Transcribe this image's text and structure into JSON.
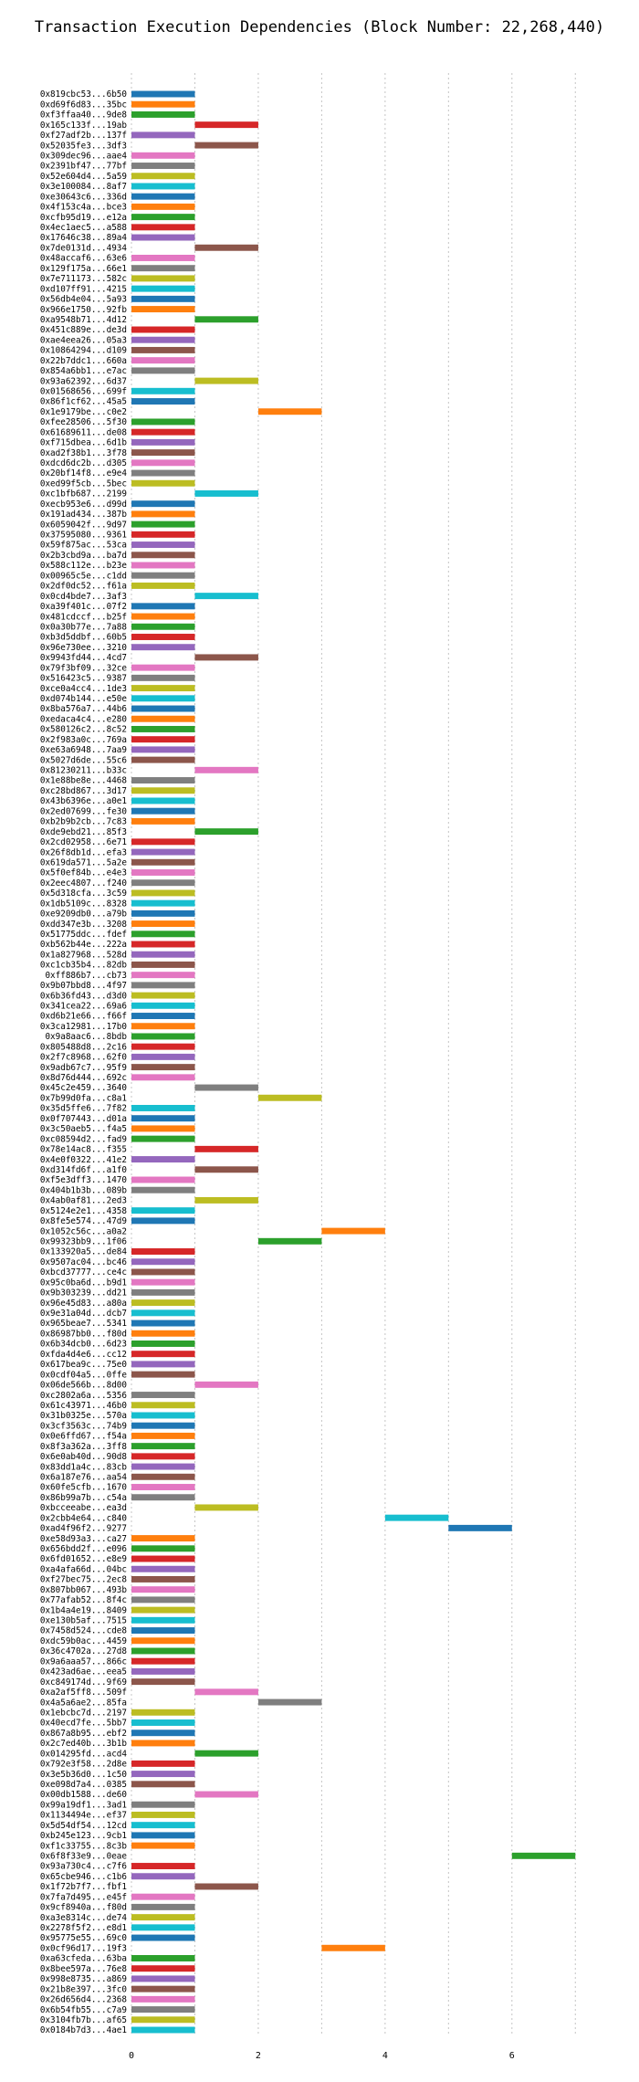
{
  "chart_data": {
    "type": "gantt",
    "title": "Transaction Execution Dependencies (Block Number: 22,268,440)",
    "xlabel": "",
    "ylabel": "",
    "xlim": [
      0,
      7.5
    ],
    "xticks": [
      0,
      2,
      4,
      6
    ],
    "grid": "vertical dotted",
    "legend": "none",
    "palette": [
      "#1f77b4",
      "#ff7f0e",
      "#2ca02c",
      "#d62728",
      "#9467bd",
      "#8c564b",
      "#e377c2",
      "#7f7f7f",
      "#bcbd22",
      "#17becf"
    ],
    "transactions": [
      {
        "hash": "0x819cbc53...6b50",
        "start": 0,
        "end": 1
      },
      {
        "hash": "0xd69f6d83...35bc",
        "start": 0,
        "end": 1
      },
      {
        "hash": "0xf3ffaa40...9de8",
        "start": 0,
        "end": 1
      },
      {
        "hash": "0x165c133f...19ab",
        "start": 1,
        "end": 2
      },
      {
        "hash": "0xf27adf2b...137f",
        "start": 0,
        "end": 1
      },
      {
        "hash": "0x52035fe3...3df3",
        "start": 1,
        "end": 2
      },
      {
        "hash": "0x309dec96...aae4",
        "start": 0,
        "end": 1
      },
      {
        "hash": "0x2391bf47...77bf",
        "start": 0,
        "end": 1
      },
      {
        "hash": "0x52e604d4...5a59",
        "start": 0,
        "end": 1
      },
      {
        "hash": "0x3e100084...8af7",
        "start": 0,
        "end": 1
      },
      {
        "hash": "0xe30643c6...336d",
        "start": 0,
        "end": 1
      },
      {
        "hash": "0x4f153c4a...bce3",
        "start": 0,
        "end": 1
      },
      {
        "hash": "0xcfb95d19...e12a",
        "start": 0,
        "end": 1
      },
      {
        "hash": "0x4ec1aec5...a588",
        "start": 0,
        "end": 1
      },
      {
        "hash": "0x17646c38...89a4",
        "start": 0,
        "end": 1
      },
      {
        "hash": "0x7de0131d...4934",
        "start": 1,
        "end": 2
      },
      {
        "hash": "0x48accaf6...63e6",
        "start": 0,
        "end": 1
      },
      {
        "hash": "0x129f175a...66e1",
        "start": 0,
        "end": 1
      },
      {
        "hash": "0x7e711173...582c",
        "start": 0,
        "end": 1
      },
      {
        "hash": "0xd107ff91...4215",
        "start": 0,
        "end": 1
      },
      {
        "hash": "0x56db4e04...5a93",
        "start": 0,
        "end": 1
      },
      {
        "hash": "0x966e1750...92fb",
        "start": 0,
        "end": 1
      },
      {
        "hash": "0xa9548b71...4d12",
        "start": 1,
        "end": 2
      },
      {
        "hash": "0x451c889e...de3d",
        "start": 0,
        "end": 1
      },
      {
        "hash": "0xae4eea26...05a3",
        "start": 0,
        "end": 1
      },
      {
        "hash": "0x10864294...d109",
        "start": 0,
        "end": 1
      },
      {
        "hash": "0x22b7ddc1...660a",
        "start": 0,
        "end": 1
      },
      {
        "hash": "0x854a6bb1...e7ac",
        "start": 0,
        "end": 1
      },
      {
        "hash": "0x93a62392...6d37",
        "start": 1,
        "end": 2
      },
      {
        "hash": "0x01568656...699f",
        "start": 0,
        "end": 1
      },
      {
        "hash": "0x86f1cf62...45a5",
        "start": 0,
        "end": 1
      },
      {
        "hash": "0x1e9179be...c0e2",
        "start": 2,
        "end": 3
      },
      {
        "hash": "0xfee28506...5f30",
        "start": 0,
        "end": 1
      },
      {
        "hash": "0x61689611...de08",
        "start": 0,
        "end": 1
      },
      {
        "hash": "0xf715dbea...6d1b",
        "start": 0,
        "end": 1
      },
      {
        "hash": "0xad2f38b1...3f78",
        "start": 0,
        "end": 1
      },
      {
        "hash": "0xdcd6dc2b...d305",
        "start": 0,
        "end": 1
      },
      {
        "hash": "0x20bf14f8...e9e4",
        "start": 0,
        "end": 1
      },
      {
        "hash": "0xed99f5cb...5bec",
        "start": 0,
        "end": 1
      },
      {
        "hash": "0xc1bfb687...2199",
        "start": 1,
        "end": 2
      },
      {
        "hash": "0xecb953e6...d99d",
        "start": 0,
        "end": 1
      },
      {
        "hash": "0x191ad434...387b",
        "start": 0,
        "end": 1
      },
      {
        "hash": "0x6059042f...9d97",
        "start": 0,
        "end": 1
      },
      {
        "hash": "0x37595080...9361",
        "start": 0,
        "end": 1
      },
      {
        "hash": "0x59f875ac...53ca",
        "start": 0,
        "end": 1
      },
      {
        "hash": "0x2b3cbd9a...ba7d",
        "start": 0,
        "end": 1
      },
      {
        "hash": "0x588c112e...b23e",
        "start": 0,
        "end": 1
      },
      {
        "hash": "0x00965c5e...c1dd",
        "start": 0,
        "end": 1
      },
      {
        "hash": "0x2df0dc52...f61a",
        "start": 0,
        "end": 1
      },
      {
        "hash": "0x0cd4bde7...3af3",
        "start": 1,
        "end": 2
      },
      {
        "hash": "0xa39f401c...07f2",
        "start": 0,
        "end": 1
      },
      {
        "hash": "0x481cdccf...b25f",
        "start": 0,
        "end": 1
      },
      {
        "hash": "0x0a30b77e...7a88",
        "start": 0,
        "end": 1
      },
      {
        "hash": "0xb3d5ddbf...60b5",
        "start": 0,
        "end": 1
      },
      {
        "hash": "0x96e730ee...3210",
        "start": 0,
        "end": 1
      },
      {
        "hash": "0x9943fd44...4cd7",
        "start": 1,
        "end": 2
      },
      {
        "hash": "0x79f3bf09...32ce",
        "start": 0,
        "end": 1
      },
      {
        "hash": "0x516423c5...9387",
        "start": 0,
        "end": 1
      },
      {
        "hash": "0xce0a4cc4...1de3",
        "start": 0,
        "end": 1
      },
      {
        "hash": "0xd074b144...e50e",
        "start": 0,
        "end": 1
      },
      {
        "hash": "0x8ba576a7...44b6",
        "start": 0,
        "end": 1
      },
      {
        "hash": "0xedaca4c4...e280",
        "start": 0,
        "end": 1
      },
      {
        "hash": "0x580126c2...8c52",
        "start": 0,
        "end": 1
      },
      {
        "hash": "0x2f983a0c...769a",
        "start": 0,
        "end": 1
      },
      {
        "hash": "0xe63a6948...7aa9",
        "start": 0,
        "end": 1
      },
      {
        "hash": "0x5027d6de...55c6",
        "start": 0,
        "end": 1
      },
      {
        "hash": "0x81230211...b33c",
        "start": 1,
        "end": 2
      },
      {
        "hash": "0x1e88be8e...4468",
        "start": 0,
        "end": 1
      },
      {
        "hash": "0xc28bd867...3d17",
        "start": 0,
        "end": 1
      },
      {
        "hash": "0x43b6396e...a0e1",
        "start": 0,
        "end": 1
      },
      {
        "hash": "0x2ed07699...fe30",
        "start": 0,
        "end": 1
      },
      {
        "hash": "0xb2b9b2cb...7c83",
        "start": 0,
        "end": 1
      },
      {
        "hash": "0xde9ebd21...85f3",
        "start": 1,
        "end": 2
      },
      {
        "hash": "0x2cd02958...6e71",
        "start": 0,
        "end": 1
      },
      {
        "hash": "0x26f8db1d...efa3",
        "start": 0,
        "end": 1
      },
      {
        "hash": "0x619da571...5a2e",
        "start": 0,
        "end": 1
      },
      {
        "hash": "0x5f0ef84b...e4e3",
        "start": 0,
        "end": 1
      },
      {
        "hash": "0x2eec4807...f240",
        "start": 0,
        "end": 1
      },
      {
        "hash": "0x5d318cfa...3c59",
        "start": 0,
        "end": 1
      },
      {
        "hash": "0x1db5109c...8328",
        "start": 0,
        "end": 1
      },
      {
        "hash": "0xe9209db0...a79b",
        "start": 0,
        "end": 1
      },
      {
        "hash": "0xdd347e3b...3208",
        "start": 0,
        "end": 1
      },
      {
        "hash": "0x51775ddc...fdef",
        "start": 0,
        "end": 1
      },
      {
        "hash": "0xb562b44e...222a",
        "start": 0,
        "end": 1
      },
      {
        "hash": "0x1a827968...528d",
        "start": 0,
        "end": 1
      },
      {
        "hash": "0xc1cb35b4...82db",
        "start": 0,
        "end": 1
      },
      {
        "hash": "0xff886b7...cb73",
        "start": 0,
        "end": 1
      },
      {
        "hash": "0x9b07bbd8...4f97",
        "start": 0,
        "end": 1
      },
      {
        "hash": "0x6b36fd43...d3d0",
        "start": 0,
        "end": 1
      },
      {
        "hash": "0x341cea22...69a6",
        "start": 0,
        "end": 1
      },
      {
        "hash": "0xd6b21e66...f66f",
        "start": 0,
        "end": 1
      },
      {
        "hash": "0x3ca12981...17b0",
        "start": 0,
        "end": 1
      },
      {
        "hash": "0x9a8aac6...8bdb",
        "start": 0,
        "end": 1
      },
      {
        "hash": "0x805488d8...2c16",
        "start": 0,
        "end": 1
      },
      {
        "hash": "0x2f7c8968...62f0",
        "start": 0,
        "end": 1
      },
      {
        "hash": "0x9adb67c7...95f9",
        "start": 0,
        "end": 1
      },
      {
        "hash": "0x8d76d444...692c",
        "start": 0,
        "end": 1
      },
      {
        "hash": "0x45c2e459...3640",
        "start": 1,
        "end": 2
      },
      {
        "hash": "0x7b99d0fa...c8a1",
        "start": 2,
        "end": 3
      },
      {
        "hash": "0x35d5ffe6...7f82",
        "start": 0,
        "end": 1
      },
      {
        "hash": "0x0f707443...d01a",
        "start": 0,
        "end": 1
      },
      {
        "hash": "0x3c50aeb5...f4a5",
        "start": 0,
        "end": 1
      },
      {
        "hash": "0xc08594d2...fad9",
        "start": 0,
        "end": 1
      },
      {
        "hash": "0x78e14ac8...f355",
        "start": 1,
        "end": 2
      },
      {
        "hash": "0x4e0f0322...41e2",
        "start": 0,
        "end": 1
      },
      {
        "hash": "0xd314fd6f...a1f0",
        "start": 1,
        "end": 2
      },
      {
        "hash": "0xf5e3dff3...1470",
        "start": 0,
        "end": 1
      },
      {
        "hash": "0x404b1b3b...089b",
        "start": 0,
        "end": 1
      },
      {
        "hash": "0x4ab0af81...2ed3",
        "start": 1,
        "end": 2
      },
      {
        "hash": "0x5124e2e1...4358",
        "start": 0,
        "end": 1
      },
      {
        "hash": "0x8fe5e574...47d9",
        "start": 0,
        "end": 1
      },
      {
        "hash": "0x1052c56c...a0a2",
        "start": 3,
        "end": 4
      },
      {
        "hash": "0x99323bb9...1f06",
        "start": 2,
        "end": 3
      },
      {
        "hash": "0x133920a5...de84",
        "start": 0,
        "end": 1
      },
      {
        "hash": "0x9507ac04...bc46",
        "start": 0,
        "end": 1
      },
      {
        "hash": "0xbcd37777...ce4c",
        "start": 0,
        "end": 1
      },
      {
        "hash": "0x95c0ba6d...b9d1",
        "start": 0,
        "end": 1
      },
      {
        "hash": "0x9b303239...dd21",
        "start": 0,
        "end": 1
      },
      {
        "hash": "0x96e45d83...a80a",
        "start": 0,
        "end": 1
      },
      {
        "hash": "0x9e31a04d...dcb7",
        "start": 0,
        "end": 1
      },
      {
        "hash": "0x965beae7...5341",
        "start": 0,
        "end": 1
      },
      {
        "hash": "0x86987bb0...f80d",
        "start": 0,
        "end": 1
      },
      {
        "hash": "0x6b34dcb0...6d23",
        "start": 0,
        "end": 1
      },
      {
        "hash": "0xfda4d4e6...cc12",
        "start": 0,
        "end": 1
      },
      {
        "hash": "0x617bea9c...75e0",
        "start": 0,
        "end": 1
      },
      {
        "hash": "0x0cdf04a5...0ffe",
        "start": 0,
        "end": 1
      },
      {
        "hash": "0x06de566b...8d00",
        "start": 1,
        "end": 2
      },
      {
        "hash": "0xc2802a6a...5356",
        "start": 0,
        "end": 1
      },
      {
        "hash": "0x61c43971...46b0",
        "start": 0,
        "end": 1
      },
      {
        "hash": "0x31b0325e...570a",
        "start": 0,
        "end": 1
      },
      {
        "hash": "0x3cf3563c...74b9",
        "start": 0,
        "end": 1
      },
      {
        "hash": "0x0e6ffd67...f54a",
        "start": 0,
        "end": 1
      },
      {
        "hash": "0x8f3a362a...3ff8",
        "start": 0,
        "end": 1
      },
      {
        "hash": "0x6e0ab40d...90d8",
        "start": 0,
        "end": 1
      },
      {
        "hash": "0x83dd1a4c...83cb",
        "start": 0,
        "end": 1
      },
      {
        "hash": "0x6a187e76...aa54",
        "start": 0,
        "end": 1
      },
      {
        "hash": "0x60fe5cfb...1670",
        "start": 0,
        "end": 1
      },
      {
        "hash": "0x86b99a7b...c54a",
        "start": 0,
        "end": 1
      },
      {
        "hash": "0xbcceeabe...ea3d",
        "start": 1,
        "end": 2
      },
      {
        "hash": "0x2cbb4e64...c840",
        "start": 4,
        "end": 5
      },
      {
        "hash": "0xad4f96f2...9277",
        "start": 5,
        "end": 6
      },
      {
        "hash": "0xe58d93a3...ca27",
        "start": 0,
        "end": 1
      },
      {
        "hash": "0x656bdd2f...e096",
        "start": 0,
        "end": 1
      },
      {
        "hash": "0x6fd01652...e8e9",
        "start": 0,
        "end": 1
      },
      {
        "hash": "0xa4afa66d...04bc",
        "start": 0,
        "end": 1
      },
      {
        "hash": "0xf27bec75...2ec8",
        "start": 0,
        "end": 1
      },
      {
        "hash": "0x807bb067...493b",
        "start": 0,
        "end": 1
      },
      {
        "hash": "0x77afab52...8f4c",
        "start": 0,
        "end": 1
      },
      {
        "hash": "0x1b4a4e19...8409",
        "start": 0,
        "end": 1
      },
      {
        "hash": "0xe130b5af...7515",
        "start": 0,
        "end": 1
      },
      {
        "hash": "0x7458d524...cde8",
        "start": 0,
        "end": 1
      },
      {
        "hash": "0xdc59b0ac...4459",
        "start": 0,
        "end": 1
      },
      {
        "hash": "0x36c4702a...27d8",
        "start": 0,
        "end": 1
      },
      {
        "hash": "0x9a6aaa57...866c",
        "start": 0,
        "end": 1
      },
      {
        "hash": "0x423ad6ae...eea5",
        "start": 0,
        "end": 1
      },
      {
        "hash": "0xc849174d...9f69",
        "start": 0,
        "end": 1
      },
      {
        "hash": "0xa2af5ff8...509f",
        "start": 1,
        "end": 2
      },
      {
        "hash": "0x4a5a6ae2...85fa",
        "start": 2,
        "end": 3
      },
      {
        "hash": "0x1ebcbc7d...2197",
        "start": 0,
        "end": 1
      },
      {
        "hash": "0x40ecd7fe...5bb7",
        "start": 0,
        "end": 1
      },
      {
        "hash": "0x867a8b95...ebf2",
        "start": 0,
        "end": 1
      },
      {
        "hash": "0x2c7ed40b...3b1b",
        "start": 0,
        "end": 1
      },
      {
        "hash": "0x014295fd...acd4",
        "start": 1,
        "end": 2
      },
      {
        "hash": "0x792e3f58...2d8e",
        "start": 0,
        "end": 1
      },
      {
        "hash": "0x3e5b36d0...1c50",
        "start": 0,
        "end": 1
      },
      {
        "hash": "0xe098d7a4...0385",
        "start": 0,
        "end": 1
      },
      {
        "hash": "0x00db1588...de60",
        "start": 1,
        "end": 2
      },
      {
        "hash": "0x99a19df1...3ad1",
        "start": 0,
        "end": 1
      },
      {
        "hash": "0x1134494e...ef37",
        "start": 0,
        "end": 1
      },
      {
        "hash": "0x5d54df54...12cd",
        "start": 0,
        "end": 1
      },
      {
        "hash": "0xb245e123...9cb1",
        "start": 0,
        "end": 1
      },
      {
        "hash": "0xf1c33755...8c3b",
        "start": 0,
        "end": 1
      },
      {
        "hash": "0x6f8f33e9...0eae",
        "start": 6,
        "end": 7
      },
      {
        "hash": "0x93a730c4...c7f6",
        "start": 0,
        "end": 1
      },
      {
        "hash": "0x65cbe946...c1b6",
        "start": 0,
        "end": 1
      },
      {
        "hash": "0x1f72b7f7...fbf1",
        "start": 1,
        "end": 2
      },
      {
        "hash": "0x7fa7d495...e45f",
        "start": 0,
        "end": 1
      },
      {
        "hash": "0x9cf8940a...f80d",
        "start": 0,
        "end": 1
      },
      {
        "hash": "0xa3e8314c...de74",
        "start": 0,
        "end": 1
      },
      {
        "hash": "0x2278f5f2...e8d1",
        "start": 0,
        "end": 1
      },
      {
        "hash": "0x95775e55...69c0",
        "start": 0,
        "end": 1
      },
      {
        "hash": "0x0cf96d17...19f3",
        "start": 3,
        "end": 4
      },
      {
        "hash": "0xa63cfeda...63ba",
        "start": 0,
        "end": 1
      },
      {
        "hash": "0x8bee597a...76e8",
        "start": 0,
        "end": 1
      },
      {
        "hash": "0x998e8735...a869",
        "start": 0,
        "end": 1
      },
      {
        "hash": "0x21b8e397...3fc0",
        "start": 0,
        "end": 1
      },
      {
        "hash": "0x26d656d4...2368",
        "start": 0,
        "end": 1
      },
      {
        "hash": "0x6b54fb55...c7a9",
        "start": 0,
        "end": 1
      },
      {
        "hash": "0x3104fb7b...af65",
        "start": 0,
        "end": 1
      },
      {
        "hash": "0x0184b7d3...4ae1",
        "start": 0,
        "end": 1
      }
    ]
  }
}
